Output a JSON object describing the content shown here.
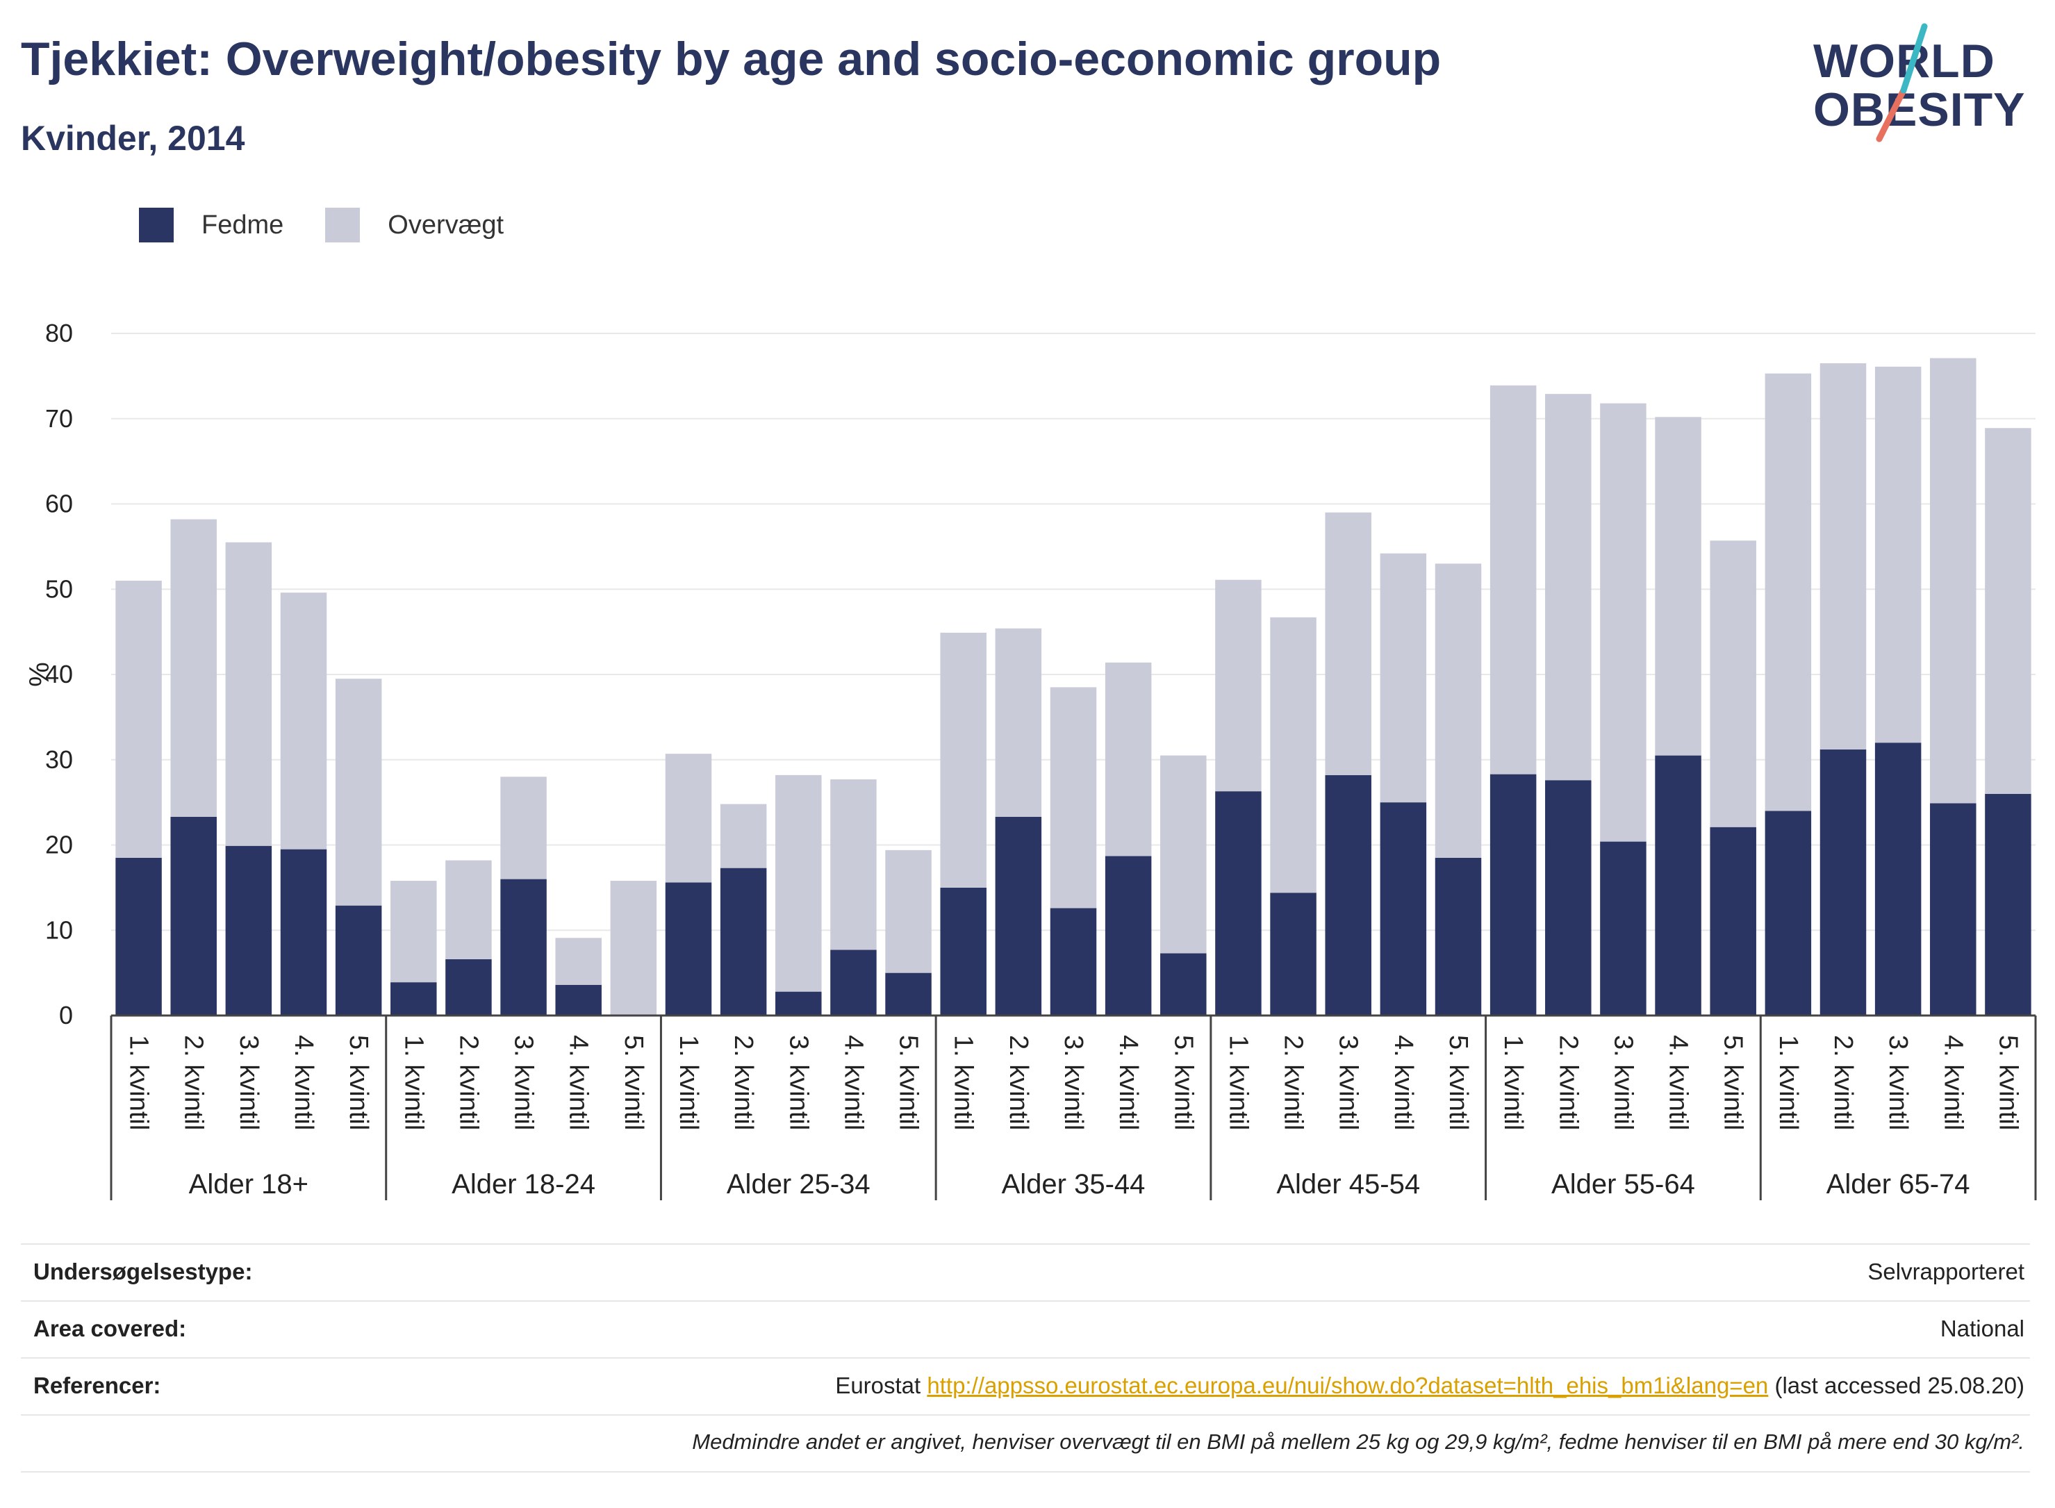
{
  "header": {
    "title": "Tjekkiet: Overweight/obesity by age and socio-economic group",
    "subtitle": "Kvinder, 2014"
  },
  "logo": {
    "line1": "WORLD",
    "line2": "OBESITY"
  },
  "colors": {
    "fedme": "#2a3563",
    "overvaegt": "#c9cbd8",
    "accent_teal": "#3bb8c3",
    "accent_coral": "#e8705f"
  },
  "chart_data": {
    "type": "bar",
    "stacked": true,
    "ylabel": "%",
    "ylim": [
      0,
      80
    ],
    "yticks": [
      0,
      10,
      20,
      30,
      40,
      50,
      60,
      70,
      80
    ],
    "grid": true,
    "legend_position": "top-left",
    "groups": [
      "Alder 18+",
      "Alder 18-24",
      "Alder 25-34",
      "Alder 35-44",
      "Alder 45-54",
      "Alder 55-64",
      "Alder 65-74"
    ],
    "categories": [
      "1. kvintil",
      "2. kvintil",
      "3. kvintil",
      "4. kvintil",
      "5. kvintil"
    ],
    "series": [
      {
        "name": "Fedme",
        "values": [
          [
            18.5,
            23.3,
            19.9,
            19.5,
            12.9
          ],
          [
            3.9,
            6.6,
            16.0,
            3.6,
            0
          ],
          [
            15.6,
            17.3,
            2.8,
            7.7,
            5.0
          ],
          [
            15.0,
            23.3,
            12.6,
            18.7,
            7.3
          ],
          [
            26.3,
            14.4,
            28.2,
            25.0,
            18.5
          ],
          [
            28.3,
            27.6,
            20.4,
            30.5,
            22.1
          ],
          [
            24.0,
            31.2,
            32.0,
            24.9,
            26.0
          ]
        ]
      },
      {
        "name": "Overvægt",
        "values": [
          [
            32.5,
            34.9,
            35.6,
            30.1,
            26.6
          ],
          [
            11.9,
            11.6,
            12.0,
            5.5,
            15.8
          ],
          [
            15.1,
            7.5,
            25.4,
            20.0,
            14.4
          ],
          [
            29.9,
            22.1,
            25.9,
            22.7,
            23.2
          ],
          [
            24.8,
            32.3,
            30.8,
            29.2,
            34.5
          ],
          [
            45.6,
            45.3,
            51.4,
            39.7,
            33.6
          ],
          [
            51.3,
            45.3,
            44.1,
            52.2,
            42.9
          ]
        ]
      }
    ]
  },
  "info": {
    "rows": [
      {
        "key": "Undersøgelsestype:",
        "value": "Selvrapporteret"
      },
      {
        "key": "Area covered:",
        "value": "National"
      }
    ],
    "references": {
      "key": "Referencer:",
      "prefix": "Eurostat ",
      "link": "http://appsso.eurostat.ec.europa.eu/nui/show.do?dataset=hlth_ehis_bm1i&lang=en",
      "suffix": " (last accessed 25.08.20)"
    },
    "note": "Medmindre andet er angivet, henviser overvægt til en BMI på mellem 25 kg og 29,9 kg/m², fedme henviser til en BMI på mere end 30 kg/m²."
  }
}
